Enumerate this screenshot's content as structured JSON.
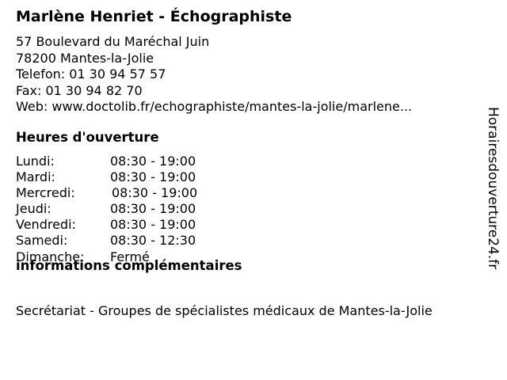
{
  "title": "Marlène Henriet - Échographiste",
  "contact": {
    "street": "57 Boulevard du Maréchal Juin",
    "city": "78200 Mantes-la-Jolie",
    "phone": "Telefon: 01 30 94 57 57",
    "fax": "Fax: 01 30 94 82 70",
    "web": "Web: www.doctolib.fr/echographiste/mantes-la-jolie/marlene..."
  },
  "hours_heading": "Heures d'ouverture",
  "hours": [
    {
      "day": "Lundi:",
      "time": "08:30 - 19:00"
    },
    {
      "day": "Mardi:",
      "time": "08:30 - 19:00"
    },
    {
      "day": "Mercredi:",
      "time": "08:30 - 19:00"
    },
    {
      "day": "Jeudi:",
      "time": "08:30 - 19:00"
    },
    {
      "day": "Vendredi:",
      "time": "08:30 - 19:00"
    },
    {
      "day": "Samedi:",
      "time": "08:30 - 12:30"
    },
    {
      "day": "Dimanche:",
      "time": "Fermé"
    }
  ],
  "info_heading": "informations complémentaires",
  "info_text": "Secrétariat - Groupes de spécialistes médicaux de Mantes-la-Jolie",
  "watermark": "Horairesdouverture24.fr"
}
